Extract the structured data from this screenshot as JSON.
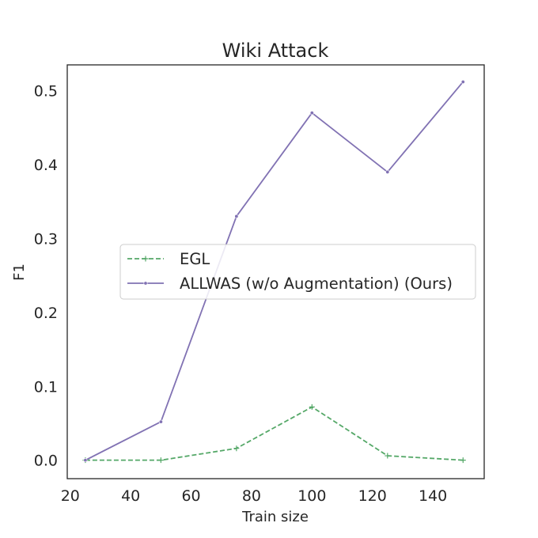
{
  "chart_data": {
    "type": "line",
    "title": "Wiki Attack",
    "xlabel": "Train size",
    "ylabel": "F1",
    "xlim": [
      19,
      157
    ],
    "ylim": [
      -0.025,
      0.535
    ],
    "xticks": [
      20,
      40,
      60,
      80,
      100,
      120,
      140
    ],
    "yticks": [
      0.0,
      0.1,
      0.2,
      0.3,
      0.4,
      0.5
    ],
    "xtick_labels": [
      "20",
      "40",
      "60",
      "80",
      "100",
      "120",
      "140"
    ],
    "ytick_labels": [
      "0.0",
      "0.1",
      "0.2",
      "0.3",
      "0.4",
      "0.5"
    ],
    "grid": false,
    "legend_position": "center-right",
    "x": [
      25,
      50,
      75,
      100,
      125,
      150
    ],
    "series": [
      {
        "name": "EGL",
        "values": [
          0.0,
          0.0,
          0.016,
          0.072,
          0.006,
          0.0
        ],
        "color": "#55a868",
        "line_style": "dashed",
        "marker": "plus"
      },
      {
        "name": "ALLWAS (w/o Augmentation) (Ours)",
        "values": [
          0.0,
          0.052,
          0.33,
          0.47,
          0.39,
          0.512
        ],
        "color": "#8172b3",
        "line_style": "solid",
        "marker": "dot"
      }
    ]
  }
}
